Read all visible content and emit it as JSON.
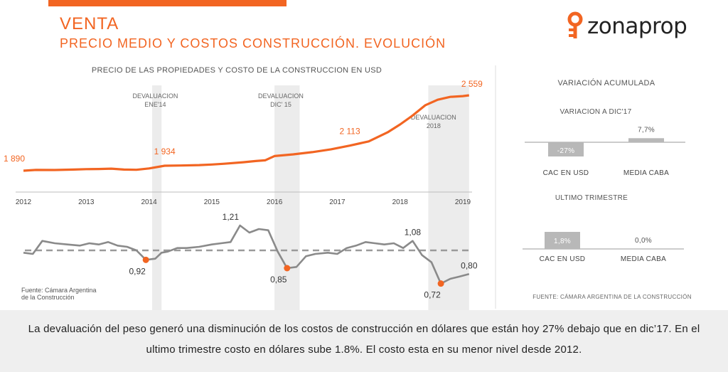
{
  "header": {
    "title": "VENTA",
    "subtitle": "PRECIO MEDIO Y COSTOS CONSTRUCCIÓN. EVOLUCIÓN",
    "logo_text": "zonaprop"
  },
  "colors": {
    "accent": "#f26522",
    "gray_line": "#8a8a8a",
    "band": "#ececec",
    "bar": "#b8b8b8"
  },
  "chart_data": [
    {
      "type": "line",
      "title": "PRECIO DE LAS PROPIEDADES Y COSTO DE LA CONSTRUCCION EN USD",
      "x_ticks": [
        "2012",
        "2013",
        "2014",
        "2015",
        "2016",
        "2017",
        "2018",
        "2019"
      ],
      "xlim": [
        2012,
        2019
      ],
      "annotations": [
        {
          "label_lines": [
            "DEVALUACION",
            "ENE'14"
          ],
          "x": 2014.1
        },
        {
          "label_lines": [
            "DEVALUACION",
            "DIC' 15"
          ],
          "x": 2016.1
        },
        {
          "label_lines": [
            "DEVALUACION",
            "2018"
          ],
          "x": 2018.5
        }
      ],
      "bands": [
        [
          2014.05,
          2014.2
        ],
        [
          2016.0,
          2016.4
        ],
        [
          2018.45,
          2019.1
        ]
      ],
      "series": [
        {
          "color": "#f26522",
          "x": [
            2012.0,
            2012.2,
            2012.5,
            2012.8,
            2013.0,
            2013.2,
            2013.4,
            2013.6,
            2013.8,
            2014.0,
            2014.25,
            2014.5,
            2014.8,
            2015.0,
            2015.2,
            2015.5,
            2015.7,
            2015.85,
            2016.0,
            2016.3,
            2016.6,
            2016.9,
            2017.2,
            2017.5,
            2017.8,
            2018.0,
            2018.2,
            2018.4,
            2018.6,
            2018.8,
            2019.0,
            2019.1
          ],
          "y": [
            1890,
            1897,
            1896,
            1900,
            1904,
            1905,
            1908,
            1900,
            1898,
            1910,
            1934,
            1936,
            1940,
            1945,
            1952,
            1965,
            1976,
            1982,
            2020,
            2035,
            2055,
            2080,
            2113,
            2150,
            2230,
            2300,
            2380,
            2470,
            2520,
            2545,
            2552,
            2559
          ],
          "point_labels": [
            {
              "x": 2012.0,
              "y": 1890,
              "text": "1 890"
            },
            {
              "x": 2014.25,
              "y": 1934,
              "text": "1 934"
            },
            {
              "x": 2017.2,
              "y": 2113,
              "text": "2 113"
            },
            {
              "x": 2019.1,
              "y": 2559,
              "text": "2 559"
            }
          ]
        }
      ]
    },
    {
      "type": "line",
      "xlim": [
        2012,
        2019
      ],
      "reference_line": 1.0,
      "source": [
        "Fuente: Cámara Argentina",
        "de la Construcción"
      ],
      "series": [
        {
          "color": "#8a8a8a",
          "x": [
            2012.0,
            2012.15,
            2012.3,
            2012.5,
            2012.7,
            2012.9,
            2013.05,
            2013.2,
            2013.35,
            2013.5,
            2013.65,
            2013.8,
            2013.95,
            2014.1,
            2014.2,
            2014.3,
            2014.45,
            2014.6,
            2014.8,
            2015.0,
            2015.15,
            2015.3,
            2015.45,
            2015.6,
            2015.75,
            2015.9,
            2016.05,
            2016.2,
            2016.35,
            2016.5,
            2016.65,
            2016.85,
            2017.0,
            2017.15,
            2017.3,
            2017.45,
            2017.6,
            2017.75,
            2017.9,
            2018.05,
            2018.2,
            2018.35,
            2018.5,
            2018.65,
            2018.8,
            2018.95,
            2019.1
          ],
          "y": [
            0.98,
            0.97,
            1.08,
            1.06,
            1.05,
            1.04,
            1.06,
            1.05,
            1.07,
            1.04,
            1.03,
            1.0,
            0.92,
            0.93,
            0.98,
            0.99,
            1.02,
            1.02,
            1.03,
            1.05,
            1.06,
            1.07,
            1.21,
            1.15,
            1.18,
            1.17,
            0.99,
            0.85,
            0.86,
            0.95,
            0.97,
            0.98,
            0.97,
            1.02,
            1.04,
            1.07,
            1.06,
            1.05,
            1.06,
            1.02,
            1.08,
            0.96,
            0.9,
            0.72,
            0.76,
            0.78,
            0.8
          ],
          "point_labels": [
            {
              "x": 2013.95,
              "y": 0.92,
              "text": "0,92",
              "marker": true
            },
            {
              "x": 2015.3,
              "y": 1.21,
              "text": "1,21",
              "marker": false
            },
            {
              "x": 2016.2,
              "y": 0.85,
              "text": "0,85",
              "marker": true
            },
            {
              "x": 2018.2,
              "y": 1.08,
              "text": "1,08",
              "marker": false
            },
            {
              "x": 2018.65,
              "y": 0.72,
              "text": "0,72",
              "marker": true
            },
            {
              "x": 2019.1,
              "y": 0.8,
              "text": "0,80",
              "marker": false
            }
          ]
        }
      ]
    },
    {
      "type": "bar",
      "title": "VARIACIÓN ACUMULADA",
      "subtitle": "VARIACION A DIC'17",
      "categories": [
        "CAC EN USD",
        "MEDIA CABA"
      ],
      "values": [
        -27,
        7.7
      ],
      "value_labels": [
        "-27%",
        "7,7%"
      ]
    },
    {
      "type": "bar",
      "title": "ULTIMO TRIMESTRE",
      "categories": [
        "CAC EN USD",
        "MEDIA CABA"
      ],
      "values": [
        1.8,
        0.0
      ],
      "value_labels": [
        "1,8%",
        "0,0%"
      ],
      "source": "FUENTE: CÁMARA ARGENTINA DE LA CONSTRUCCIÓN"
    }
  ],
  "footer": {
    "lines": [
      "La devaluación del peso generó una disminución de los costos de construcción en dólares que están hoy 27% debajo que en dic’17. En el",
      "ultimo trimestre costo en dólares sube 1.8%. El costo esta en su menor nivel desde 2012."
    ]
  }
}
